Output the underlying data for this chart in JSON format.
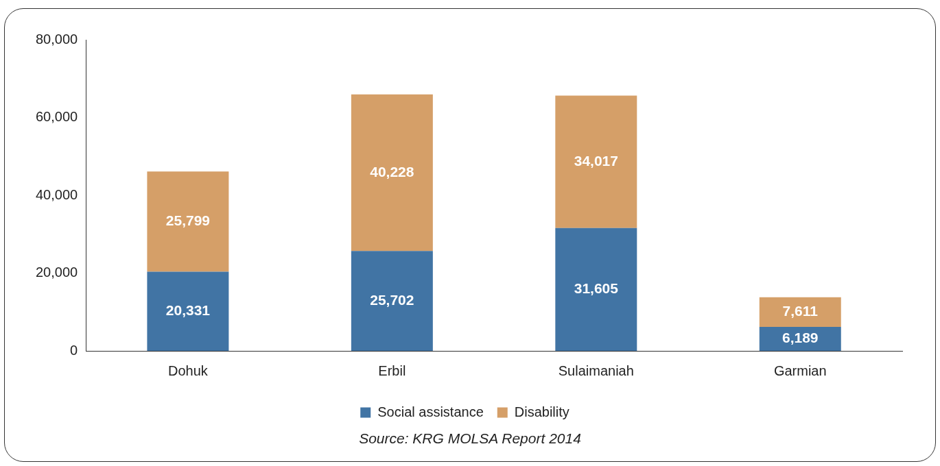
{
  "chart_data": {
    "type": "bar",
    "stacked": true,
    "categories": [
      "Dohuk",
      "Erbil",
      "Sulaimaniah",
      "Garmian"
    ],
    "series": [
      {
        "name": "Social assistance",
        "color": "#4174a4",
        "values": [
          20331,
          25702,
          31605,
          6189
        ],
        "value_labels": [
          "20,331",
          "25,702",
          "31,605",
          "6,189"
        ]
      },
      {
        "name": "Disability",
        "color": "#d59f68",
        "values": [
          25799,
          40228,
          34017,
          7611
        ],
        "value_labels": [
          "25,799",
          "40,228",
          "34,017",
          "7,611"
        ]
      }
    ],
    "ylim": [
      0,
      80000
    ],
    "yticks": [
      {
        "value": 0,
        "label": "0"
      },
      {
        "value": 20000,
        "label": "20,000"
      },
      {
        "value": 40000,
        "label": "40,000"
      },
      {
        "value": 60000,
        "label": "60,000"
      },
      {
        "value": 80000,
        "label": "80,000"
      }
    ],
    "legend": "bottom",
    "annotations": [
      "Source: KRG MOLSA Report 2014"
    ]
  }
}
